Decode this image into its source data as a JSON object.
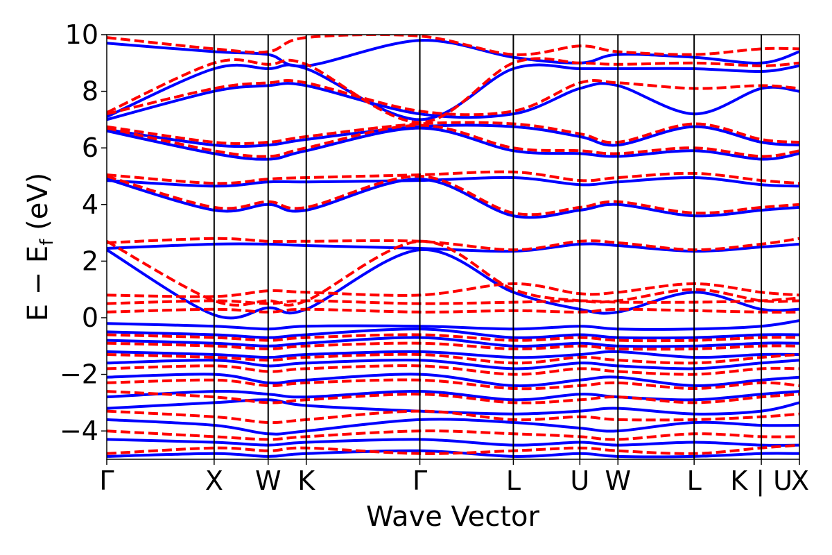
{
  "chart_data": {
    "type": "line",
    "title": "",
    "xlabel": "Wave Vector",
    "ylabel": {
      "main": "E − E",
      "sub": "f",
      "unit": " (eV)"
    },
    "ylim": [
      -5,
      10
    ],
    "yticks": [
      -4,
      -2,
      0,
      2,
      4,
      6,
      8,
      10
    ],
    "ytick_labels": [
      "−4",
      "−2",
      "0",
      "2",
      "4",
      "6",
      "8",
      "10"
    ],
    "xlim": [
      0,
      1
    ],
    "kpoints": [
      {
        "label": "Γ",
        "x": 0.0
      },
      {
        "label": "X",
        "x": 0.155
      },
      {
        "label": "W",
        "x": 0.233
      },
      {
        "label": "K",
        "x": 0.288
      },
      {
        "label": "Γ",
        "x": 0.452
      },
      {
        "label": "L",
        "x": 0.587
      },
      {
        "label": "U",
        "x": 0.683
      },
      {
        "label": "W",
        "x": 0.738
      },
      {
        "label": "L",
        "x": 0.848
      },
      {
        "label": "K | U",
        "x": 0.945
      },
      {
        "label": "X",
        "x": 1.0
      }
    ],
    "colors": {
      "series_a": "#0000ff",
      "series_b": "#ff0000"
    },
    "series": [
      {
        "style": "solid",
        "color": "#0000ff",
        "bands": [
          [
            -4.9,
            -4.8,
            -4.9,
            -4.8,
            -4.7,
            -4.9,
            -4.8,
            -4.9,
            -4.9,
            -4.8,
            -4.8
          ],
          [
            -4.3,
            -4.4,
            -4.5,
            -4.4,
            -4.3,
            -4.5,
            -4.4,
            -4.5,
            -4.4,
            -4.5,
            -4.5
          ],
          [
            -3.6,
            -3.8,
            -4.1,
            -4.0,
            -3.6,
            -3.7,
            -3.9,
            -4.0,
            -3.7,
            -3.8,
            -3.8
          ],
          [
            -3.2,
            -3.0,
            -2.9,
            -3.1,
            -3.3,
            -3.4,
            -3.3,
            -3.2,
            -3.4,
            -3.3,
            -3.0
          ],
          [
            -2.8,
            -2.6,
            -2.7,
            -2.8,
            -2.6,
            -2.9,
            -2.7,
            -2.8,
            -2.9,
            -2.7,
            -2.6
          ],
          [
            -2.1,
            -2.0,
            -2.3,
            -2.2,
            -2.0,
            -2.4,
            -2.2,
            -2.1,
            -2.4,
            -2.2,
            -2.1
          ],
          [
            -1.6,
            -1.5,
            -1.7,
            -1.6,
            -1.5,
            -1.8,
            -1.6,
            -1.7,
            -1.8,
            -1.6,
            -1.5
          ],
          [
            -1.2,
            -1.3,
            -1.4,
            -1.3,
            -1.2,
            -1.4,
            -1.3,
            -1.2,
            -1.4,
            -1.3,
            -1.3
          ],
          [
            -0.8,
            -0.9,
            -1.0,
            -0.9,
            -0.7,
            -1.0,
            -0.9,
            -1.0,
            -1.0,
            -0.9,
            -0.9
          ],
          [
            -0.5,
            -0.6,
            -0.7,
            -0.6,
            -0.4,
            -0.7,
            -0.6,
            -0.7,
            -0.7,
            -0.6,
            -0.6
          ],
          [
            -0.2,
            -0.3,
            -0.4,
            -0.3,
            -0.3,
            -0.4,
            -0.3,
            -0.4,
            -0.4,
            -0.3,
            -0.1
          ],
          [
            2.4,
            0.1,
            0.35,
            0.3,
            2.4,
            0.9,
            0.3,
            0.2,
            0.9,
            0.3,
            0.3
          ],
          [
            2.45,
            2.6,
            2.6,
            2.55,
            2.45,
            2.35,
            2.6,
            2.55,
            2.35,
            2.5,
            2.6
          ],
          [
            4.9,
            3.8,
            4.0,
            3.8,
            4.9,
            3.6,
            3.8,
            4.0,
            3.6,
            3.8,
            3.9
          ],
          [
            4.85,
            4.65,
            4.8,
            4.8,
            4.85,
            4.95,
            4.7,
            4.8,
            4.95,
            4.7,
            4.65
          ],
          [
            6.6,
            5.8,
            5.6,
            5.9,
            6.7,
            5.9,
            5.8,
            5.7,
            5.9,
            5.6,
            5.8
          ],
          [
            6.65,
            6.1,
            6.1,
            6.3,
            6.75,
            6.75,
            6.4,
            6.1,
            6.75,
            6.2,
            6.1
          ],
          [
            7.0,
            8.0,
            8.2,
            8.2,
            7.2,
            7.2,
            8.1,
            8.2,
            7.2,
            8.1,
            8.0
          ],
          [
            7.1,
            8.8,
            8.8,
            8.8,
            7.0,
            8.8,
            8.8,
            8.8,
            8.8,
            8.7,
            8.9
          ],
          [
            9.7,
            9.4,
            9.3,
            8.9,
            9.8,
            9.2,
            9.0,
            9.3,
            9.2,
            9.0,
            9.4
          ]
        ]
      },
      {
        "style": "dashed",
        "color": "#ff0000",
        "bands": [
          [
            -4.8,
            -4.6,
            -4.7,
            -4.6,
            -4.8,
            -4.7,
            -4.6,
            -4.7,
            -4.8,
            -4.6,
            -4.5
          ],
          [
            -4.0,
            -4.2,
            -4.3,
            -4.2,
            -4.0,
            -4.1,
            -4.2,
            -4.3,
            -4.1,
            -4.2,
            -4.2
          ],
          [
            -3.3,
            -3.5,
            -3.7,
            -3.6,
            -3.3,
            -3.6,
            -3.5,
            -3.6,
            -3.6,
            -3.5,
            -3.4
          ],
          [
            -2.6,
            -2.8,
            -3.0,
            -2.9,
            -2.7,
            -3.0,
            -2.9,
            -2.8,
            -3.0,
            -2.8,
            -2.7
          ],
          [
            -2.3,
            -2.2,
            -2.4,
            -2.3,
            -2.2,
            -2.5,
            -2.4,
            -2.3,
            -2.5,
            -2.3,
            -2.4
          ],
          [
            -1.8,
            -1.7,
            -1.9,
            -1.8,
            -1.7,
            -2.0,
            -1.8,
            -1.9,
            -2.0,
            -1.8,
            -1.8
          ],
          [
            -1.3,
            -1.4,
            -1.5,
            -1.4,
            -1.3,
            -1.6,
            -1.4,
            -1.5,
            -1.6,
            -1.4,
            -1.3
          ],
          [
            -0.9,
            -1.0,
            -1.1,
            -1.0,
            -0.9,
            -1.1,
            -1.0,
            -1.1,
            -1.1,
            -1.0,
            -1.0
          ],
          [
            -0.6,
            -0.7,
            -0.8,
            -0.7,
            -0.6,
            -0.8,
            -0.7,
            -0.8,
            -0.8,
            -0.7,
            -0.7
          ],
          [
            0.2,
            0.3,
            0.2,
            0.3,
            0.2,
            0.25,
            0.2,
            0.3,
            0.25,
            0.2,
            0.2
          ],
          [
            0.5,
            0.6,
            0.5,
            0.6,
            0.5,
            0.55,
            0.6,
            0.55,
            0.55,
            0.6,
            0.7
          ],
          [
            0.8,
            0.75,
            0.95,
            0.9,
            0.8,
            1.2,
            0.85,
            0.9,
            1.2,
            0.9,
            0.8
          ],
          [
            2.7,
            0.6,
            0.6,
            0.6,
            2.7,
            1.0,
            0.6,
            0.6,
            1.0,
            0.6,
            0.6
          ],
          [
            2.65,
            2.8,
            2.7,
            2.7,
            2.7,
            2.4,
            2.7,
            2.65,
            2.4,
            2.6,
            2.8
          ],
          [
            5.0,
            3.9,
            4.1,
            3.9,
            5.0,
            3.7,
            3.9,
            4.1,
            3.7,
            3.9,
            4.0
          ],
          [
            5.05,
            4.75,
            4.9,
            4.95,
            5.05,
            5.15,
            4.85,
            4.95,
            5.1,
            4.85,
            4.75
          ],
          [
            6.7,
            5.9,
            5.7,
            6.0,
            6.8,
            6.0,
            5.9,
            5.8,
            6.0,
            5.7,
            5.9
          ],
          [
            6.75,
            6.2,
            6.2,
            6.4,
            6.85,
            6.85,
            6.5,
            6.2,
            6.85,
            6.3,
            6.2
          ],
          [
            7.2,
            8.1,
            8.3,
            8.3,
            7.3,
            7.3,
            8.3,
            8.3,
            8.1,
            8.2,
            8.1
          ],
          [
            7.25,
            9.0,
            8.95,
            8.95,
            6.9,
            9.0,
            9.0,
            8.95,
            9.0,
            8.9,
            9.0
          ],
          [
            9.9,
            9.5,
            9.4,
            9.9,
            9.95,
            9.3,
            9.6,
            9.4,
            9.3,
            9.5,
            9.5
          ]
        ]
      }
    ]
  }
}
